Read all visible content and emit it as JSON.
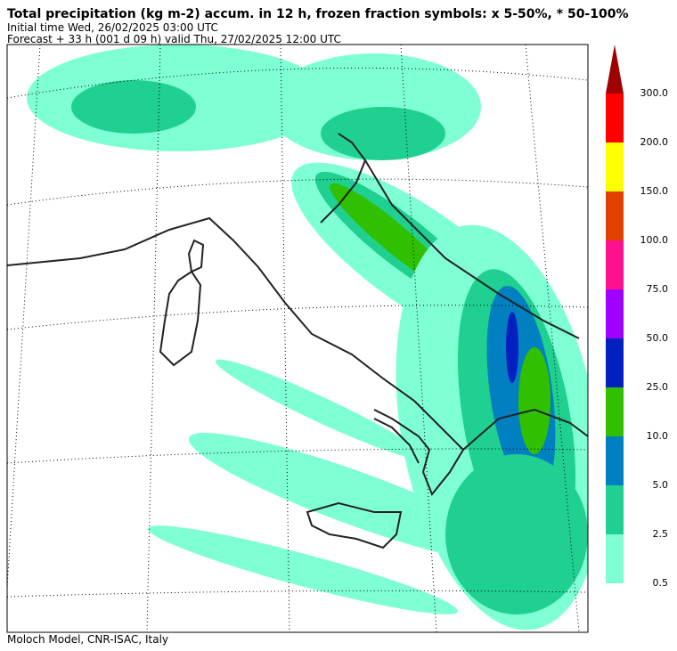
{
  "header": {
    "title": "Total precipitation (kg m-2) accum. in 12 h, frozen fraction symbols: x 5-50%, * 50-100%",
    "initial_time": "Initial time  Wed, 26/02/2025  03:00 UTC",
    "forecast": "Forecast  +  33 h  (001 d 09 h)  valid Thu, 27/02/2025 12:00 UTC"
  },
  "colorbar": {
    "labels": [
      "0.5",
      "2.5",
      "5.0",
      "10.0",
      "25.0",
      "50.0",
      "75.0",
      "100.0",
      "150.0",
      "200.0",
      "300.0"
    ],
    "colors": [
      "#7fffd4",
      "#20d090",
      "#0080c0",
      "#30c000",
      "#0020c0",
      "#a000ff",
      "#ff1090",
      "#e04000",
      "#ffff00",
      "#ff0000",
      "#a00000"
    ]
  },
  "footer": "Moloch Model, CNR-ISAC, Italy"
}
